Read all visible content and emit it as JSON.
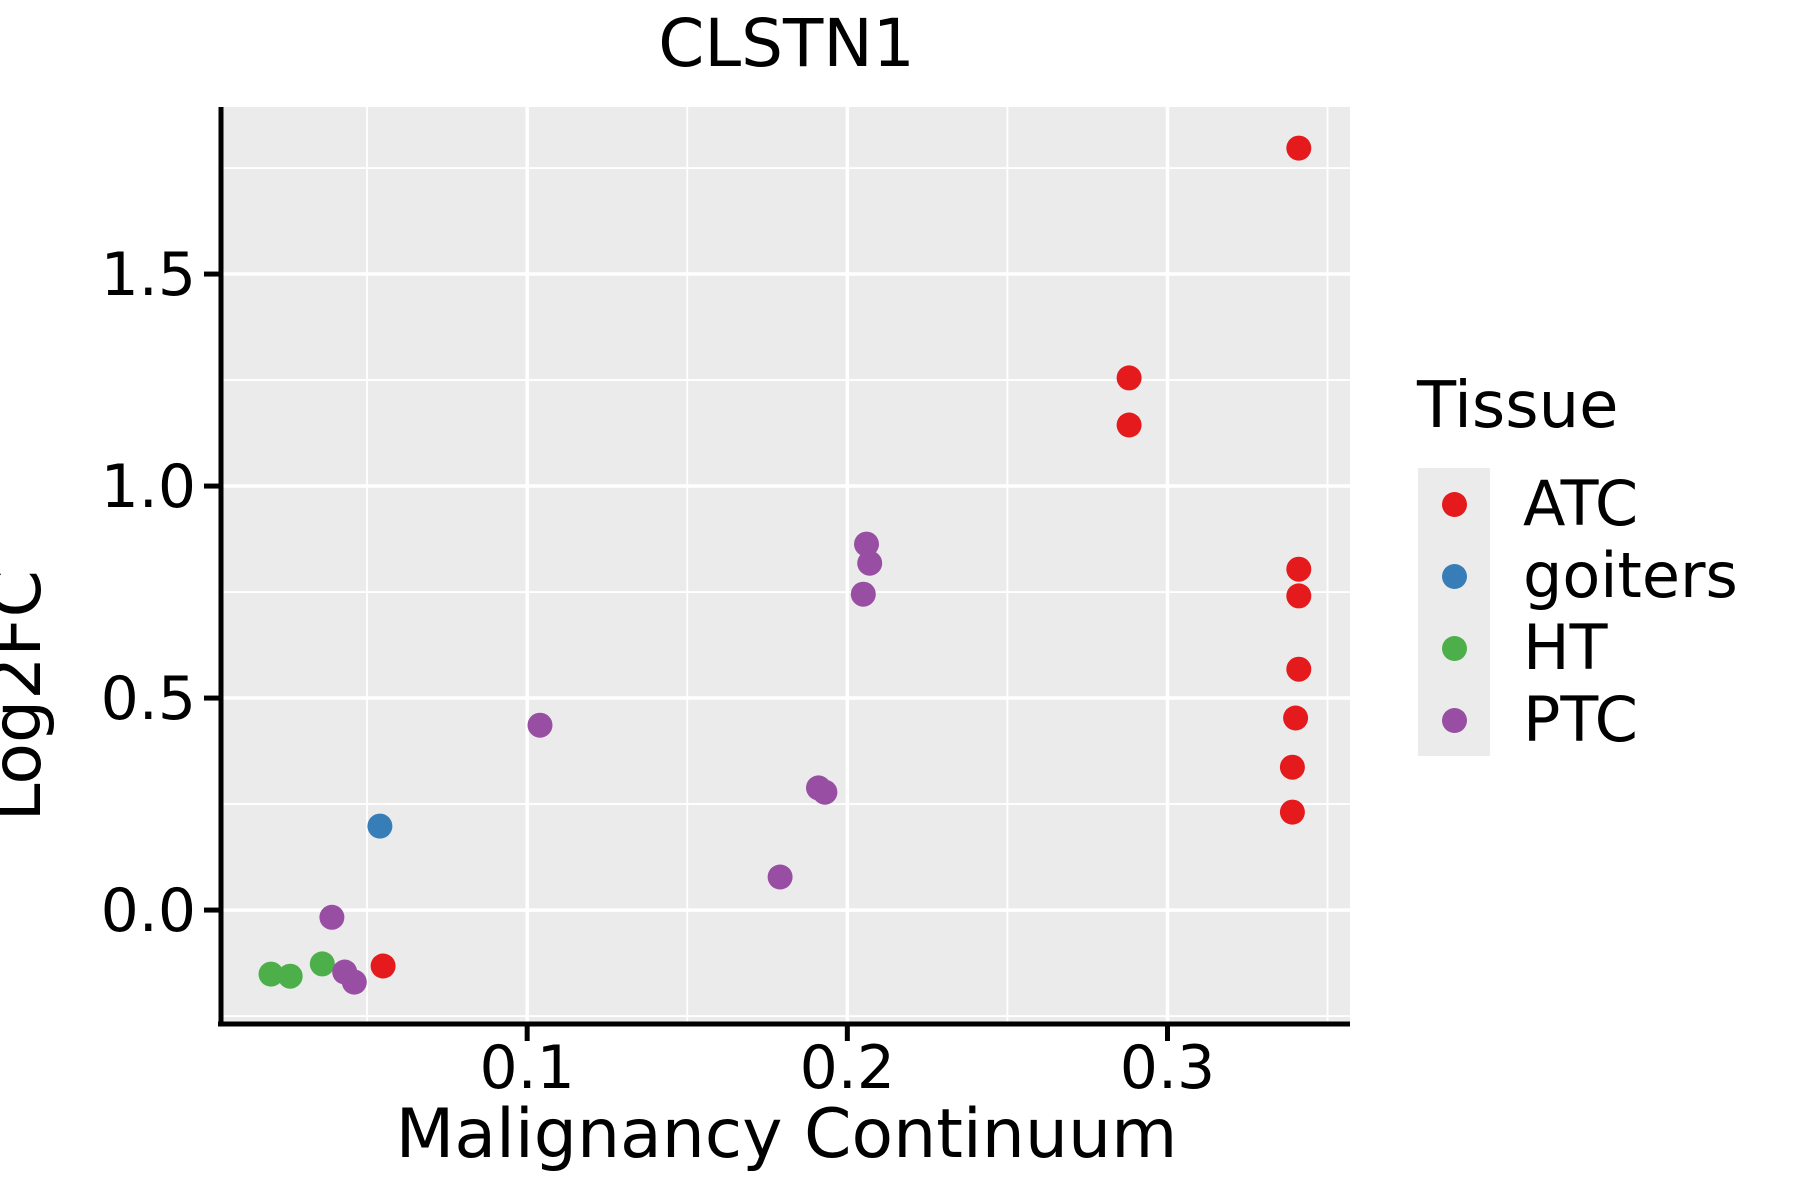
{
  "chart_data": {
    "type": "scatter",
    "title": "CLSTN1",
    "xlabel": "Malignancy Continuum",
    "ylabel": "Log2FC",
    "xlim": [
      0.005,
      0.357
    ],
    "ylim": [
      -0.264,
      1.894
    ],
    "x_ticks": {
      "values": [
        0.1,
        0.2,
        0.3
      ],
      "labels": [
        "0.1",
        "0.2",
        "0.3"
      ]
    },
    "y_ticks": {
      "values": [
        0.0,
        0.5,
        1.0,
        1.5
      ],
      "labels": [
        "0.0",
        "0.5",
        "1.0",
        "1.5"
      ]
    },
    "x_minor_ticks": [
      0.05,
      0.15,
      0.25,
      0.35
    ],
    "y_minor_ticks": [
      -0.25,
      0.25,
      0.75,
      1.25,
      1.75
    ],
    "grid": "major+minor",
    "legend_position": "right",
    "colors": {
      "panel_background": "#EBEBEB",
      "grid": "#FFFFFF",
      "axis_line": "#000000",
      "text": "#000000",
      "legend_key_background": "#EBEBEB"
    },
    "legend": {
      "title": "Tissue"
    },
    "series": [
      {
        "name": "ATC",
        "color": "#E41A1C",
        "points": [
          [
            0.341,
            1.797
          ],
          [
            0.288,
            1.255
          ],
          [
            0.288,
            1.144
          ],
          [
            0.341,
            0.804
          ],
          [
            0.341,
            0.741
          ],
          [
            0.341,
            0.568
          ],
          [
            0.34,
            0.453
          ],
          [
            0.339,
            0.337
          ],
          [
            0.339,
            0.231
          ],
          [
            0.055,
            -0.132
          ]
        ]
      },
      {
        "name": "goiters",
        "color": "#377EB8",
        "points": [
          [
            0.054,
            0.198
          ]
        ]
      },
      {
        "name": "HT",
        "color": "#4DAF4A",
        "points": [
          [
            0.02,
            -0.151
          ],
          [
            0.026,
            -0.156
          ],
          [
            0.036,
            -0.127
          ]
        ]
      },
      {
        "name": "PTC",
        "color": "#984EA3",
        "points": [
          [
            0.206,
            0.863
          ],
          [
            0.207,
            0.818
          ],
          [
            0.205,
            0.745
          ],
          [
            0.104,
            0.436
          ],
          [
            0.191,
            0.288
          ],
          [
            0.193,
            0.278
          ],
          [
            0.179,
            0.078
          ],
          [
            0.039,
            -0.017
          ],
          [
            0.043,
            -0.146
          ],
          [
            0.046,
            -0.17
          ]
        ]
      }
    ]
  }
}
